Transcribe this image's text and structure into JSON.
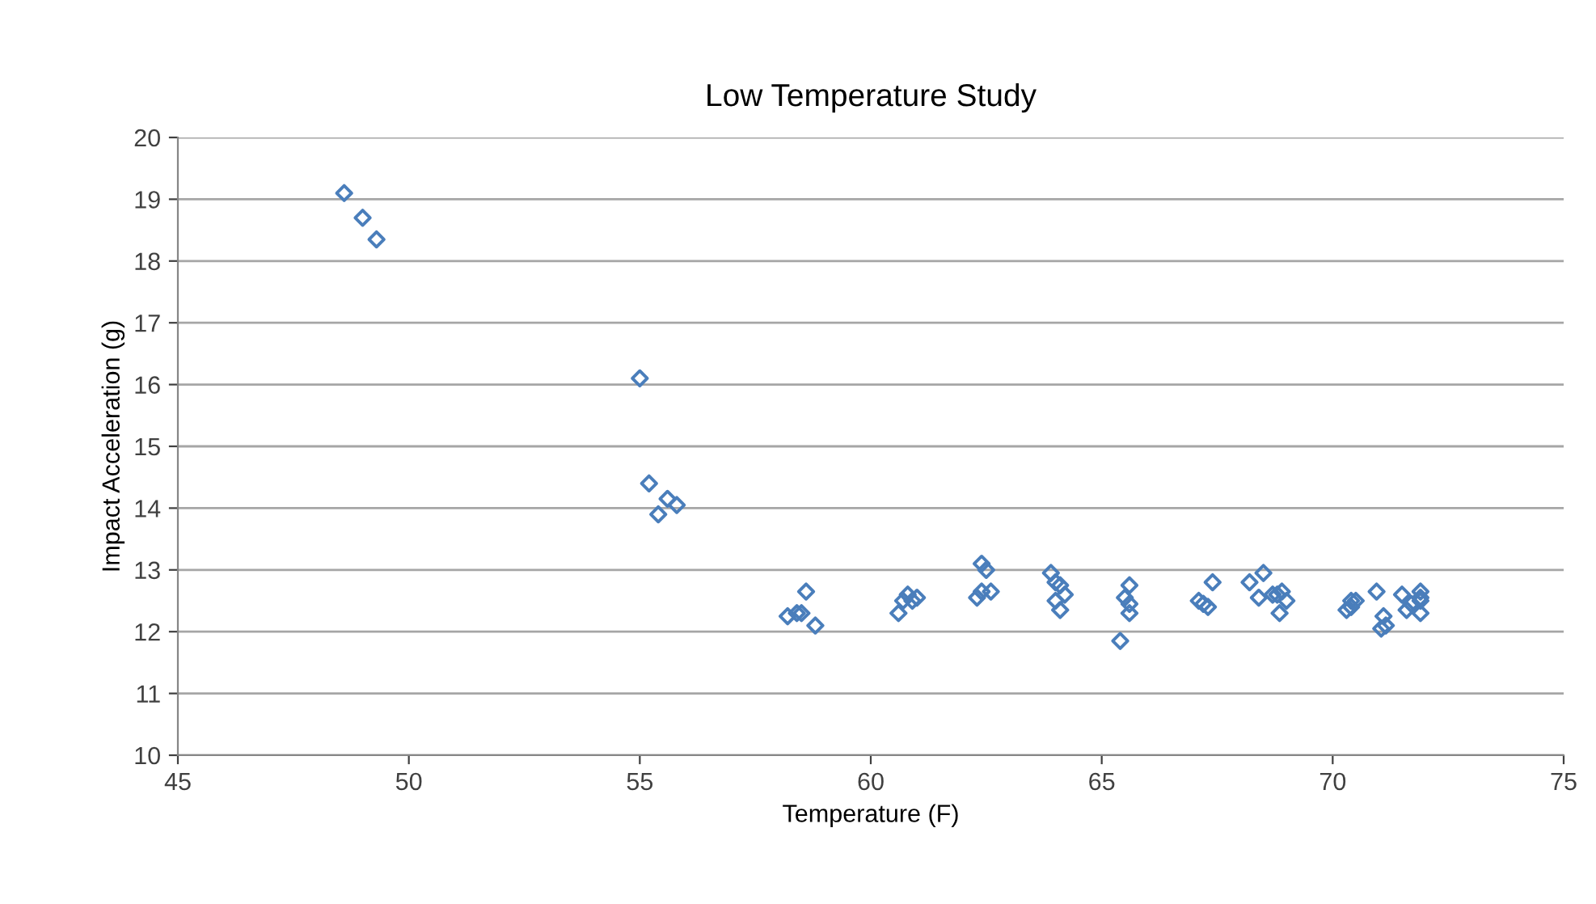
{
  "chart_data": {
    "type": "scatter",
    "title": "Low Temperature Study",
    "xlabel": "Temperature (F)",
    "ylabel": "Impact Acceleration (g)",
    "xlim": [
      45,
      75
    ],
    "xticks": [
      45,
      50,
      55,
      60,
      65,
      70,
      75
    ],
    "ylim": [
      10,
      20
    ],
    "yticks": [
      10,
      11,
      12,
      13,
      14,
      15,
      16,
      17,
      18,
      19,
      20
    ],
    "grid": "y",
    "marker": "diamond",
    "series": [
      {
        "color": "#4a7ebb",
        "x": [
          48.6,
          49.0,
          49.3,
          55.0,
          55.2,
          55.4,
          55.6,
          55.8,
          58.2,
          58.4,
          58.5,
          58.6,
          58.8,
          60.6,
          60.7,
          60.8,
          60.9,
          61.0,
          62.3,
          62.4,
          62.4,
          62.5,
          62.6,
          63.9,
          64.0,
          64.1,
          64.2,
          64.0,
          64.1,
          65.4,
          65.6,
          65.5,
          65.6,
          65.6,
          67.1,
          67.2,
          67.4,
          67.3,
          68.2,
          68.4,
          68.5,
          68.7,
          68.8,
          68.85,
          69.0,
          68.9,
          70.3,
          70.4,
          70.4,
          70.5,
          70.95,
          71.05,
          71.1,
          71.15,
          71.5,
          71.6,
          71.7,
          71.9,
          71.9,
          71.9,
          71.9
        ],
        "values": [
          19.1,
          18.7,
          18.35,
          16.1,
          14.4,
          13.9,
          14.15,
          14.05,
          12.25,
          12.3,
          12.3,
          12.65,
          12.1,
          12.3,
          12.5,
          12.6,
          12.5,
          12.55,
          12.55,
          12.65,
          13.1,
          13.0,
          12.65,
          12.95,
          12.8,
          12.75,
          12.6,
          12.5,
          12.35,
          11.85,
          12.75,
          12.55,
          12.45,
          12.3,
          12.5,
          12.45,
          12.8,
          12.4,
          12.8,
          12.55,
          12.95,
          12.6,
          12.6,
          12.3,
          12.5,
          12.65,
          12.35,
          12.5,
          12.4,
          12.5,
          12.65,
          12.05,
          12.25,
          12.1,
          12.6,
          12.35,
          12.45,
          12.65,
          12.5,
          12.3,
          12.55
        ]
      }
    ]
  }
}
